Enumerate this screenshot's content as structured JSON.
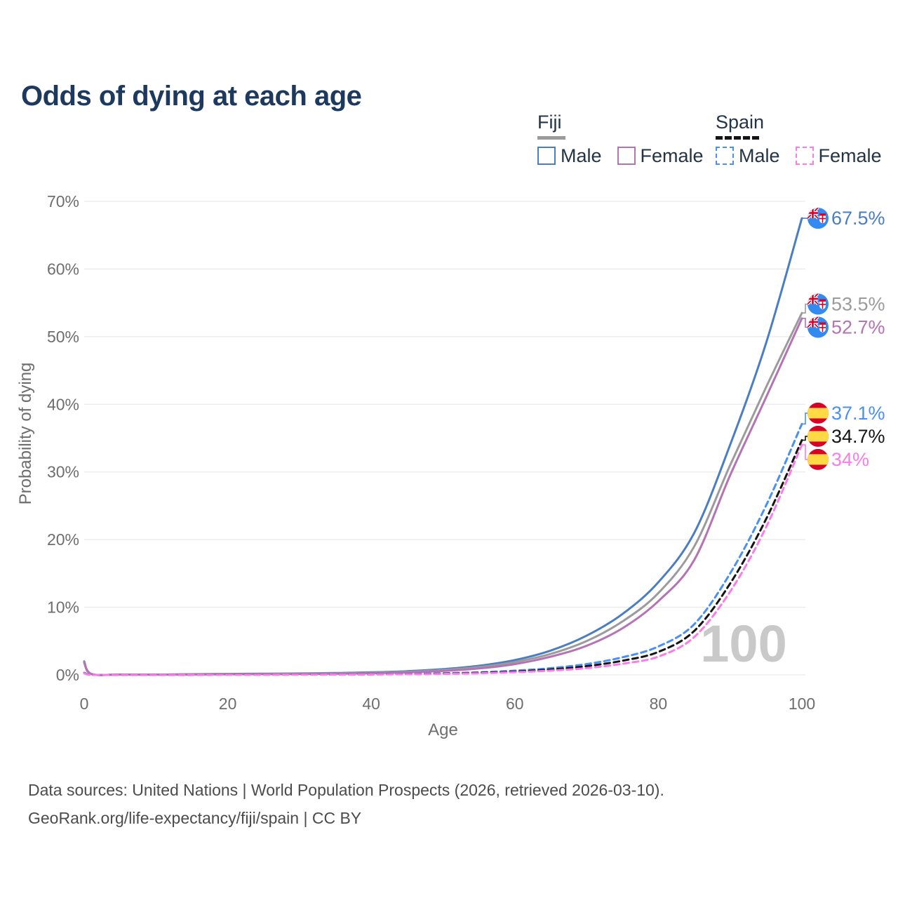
{
  "page": {
    "title": "Odds of dying at each age"
  },
  "legend": {
    "fiji": {
      "title": "Fiji",
      "male": "Male",
      "female": "Female"
    },
    "spain": {
      "title": "Spain",
      "male": "Male",
      "female": "Female"
    }
  },
  "footer": {
    "line1": "Data sources: United Nations | World Population Prospects (2026, retrieved 2026-03-10).",
    "line2": "GeoRank.org/life-expectancy/fiji/spain | CC BY"
  },
  "chart_data": {
    "type": "line",
    "title": "Odds of dying at each age",
    "xlabel": "Age",
    "ylabel": "Probability of dying",
    "xlim": [
      0,
      100
    ],
    "ylim": [
      0,
      70
    ],
    "xticks": [
      0,
      20,
      40,
      60,
      80,
      100
    ],
    "yticks": [
      0,
      10,
      20,
      30,
      40,
      50,
      60,
      70
    ],
    "ytick_suffix": "%",
    "grid": "horizontal",
    "legend_position": "top-right",
    "watermark": "100",
    "colors": {
      "fiji_male": "#4a7dc2",
      "fiji_both": "#9b9b9b",
      "fiji_female": "#b473b4",
      "spain_male": "#4a8ff2",
      "spain_both": "#151515",
      "spain_female": "#fb7be8",
      "fiji_flag_blue": "#338af3",
      "flag_red": "#d80027",
      "flag_yellow": "#ffda44"
    },
    "ages": [
      0,
      1,
      5,
      10,
      15,
      20,
      25,
      30,
      35,
      40,
      45,
      50,
      55,
      60,
      65,
      70,
      75,
      80,
      85,
      90,
      95,
      100
    ],
    "series": [
      {
        "id": "fiji-male",
        "country": "Fiji",
        "sex": "Male",
        "dashed": false,
        "color": "#4a7dc2",
        "flag": "fiji-flag-icon",
        "end_label": "67.5%",
        "end_value": 67.5,
        "values": [
          2.0,
          0.15,
          0.06,
          0.05,
          0.1,
          0.15,
          0.18,
          0.22,
          0.28,
          0.38,
          0.55,
          0.85,
          1.35,
          2.2,
          3.6,
          5.8,
          9.0,
          13.7,
          21.0,
          34.0,
          49.0,
          67.5
        ]
      },
      {
        "id": "fiji-both",
        "country": "Fiji",
        "sex": "Both",
        "dashed": false,
        "color": "#9b9b9b",
        "flag": "fiji-flag-icon",
        "end_label": "53.5%",
        "end_value": 53.5,
        "values": [
          1.9,
          0.14,
          0.055,
          0.045,
          0.08,
          0.12,
          0.15,
          0.18,
          0.23,
          0.31,
          0.46,
          0.72,
          1.15,
          1.9,
          3.1,
          5.0,
          7.9,
          12.1,
          19.0,
          31.0,
          42.5,
          53.5
        ]
      },
      {
        "id": "fiji-female",
        "country": "Fiji",
        "sex": "Female",
        "dashed": false,
        "color": "#b473b4",
        "flag": "fiji-flag-icon",
        "end_label": "52.7%",
        "end_value": 52.7,
        "values": [
          1.8,
          0.12,
          0.05,
          0.04,
          0.06,
          0.09,
          0.11,
          0.14,
          0.18,
          0.25,
          0.37,
          0.58,
          0.95,
          1.6,
          2.7,
          4.3,
          6.9,
          10.9,
          17.0,
          29.5,
          41.0,
          52.7
        ]
      },
      {
        "id": "spain-male",
        "country": "Spain",
        "sex": "Male",
        "dashed": true,
        "color": "#4a8ff2",
        "flag": "spain-flag-icon",
        "end_label": "37.1%",
        "end_value": 37.1,
        "values": [
          0.3,
          0.02,
          0.01,
          0.01,
          0.03,
          0.05,
          0.05,
          0.06,
          0.07,
          0.1,
          0.15,
          0.24,
          0.38,
          0.62,
          1.0,
          1.6,
          2.6,
          4.2,
          7.5,
          15.0,
          25.0,
          37.1
        ]
      },
      {
        "id": "spain-both",
        "country": "Spain",
        "sex": "Both",
        "dashed": true,
        "color": "#151515",
        "flag": "spain-flag-icon",
        "end_label": "34.7%",
        "end_value": 34.7,
        "values": [
          0.28,
          0.02,
          0.01,
          0.01,
          0.02,
          0.04,
          0.04,
          0.05,
          0.06,
          0.08,
          0.12,
          0.19,
          0.3,
          0.5,
          0.8,
          1.3,
          2.1,
          3.4,
          6.5,
          13.5,
          23.0,
          34.7
        ]
      },
      {
        "id": "spain-female",
        "country": "Spain",
        "sex": "Female",
        "dashed": true,
        "color": "#fb7be8",
        "flag": "spain-flag-icon",
        "end_label": "34%",
        "end_value": 34.0,
        "values": [
          0.25,
          0.02,
          0.01,
          0.01,
          0.02,
          0.03,
          0.03,
          0.04,
          0.05,
          0.07,
          0.1,
          0.15,
          0.24,
          0.4,
          0.63,
          1.0,
          1.65,
          2.7,
          5.6,
          12.3,
          21.8,
          34.0
        ]
      }
    ]
  }
}
